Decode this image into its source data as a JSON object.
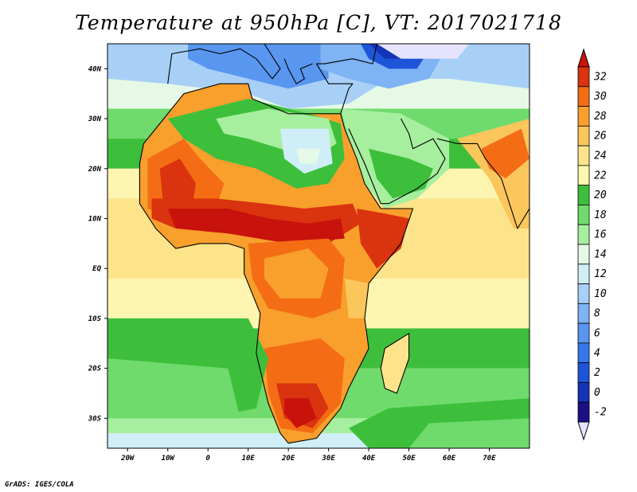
{
  "title": "Temperature at 950hPa [C], VT: 2017021718",
  "credit": "GrADS: IGES/COLA",
  "map": {
    "lon_range": [
      -25,
      80
    ],
    "lat_range": [
      -36,
      45
    ],
    "x_ticks": [
      {
        "lon": -20,
        "label": "20W"
      },
      {
        "lon": -10,
        "label": "10W"
      },
      {
        "lon": 0,
        "label": "0"
      },
      {
        "lon": 10,
        "label": "10E"
      },
      {
        "lon": 20,
        "label": "20E"
      },
      {
        "lon": 30,
        "label": "30E"
      },
      {
        "lon": 40,
        "label": "40E"
      },
      {
        "lon": 50,
        "label": "50E"
      },
      {
        "lon": 60,
        "label": "60E"
      },
      {
        "lon": 70,
        "label": "70E"
      }
    ],
    "y_ticks": [
      {
        "lat": 40,
        "label": "40N"
      },
      {
        "lat": 30,
        "label": "30N"
      },
      {
        "lat": 20,
        "label": "20N"
      },
      {
        "lat": 10,
        "label": "10N"
      },
      {
        "lat": 0,
        "label": "EQ"
      },
      {
        "lat": -10,
        "label": "10S"
      },
      {
        "lat": -20,
        "label": "20S"
      },
      {
        "lat": -30,
        "label": "30S"
      }
    ]
  },
  "colorbar": {
    "levels": [
      -2,
      0,
      2,
      4,
      6,
      8,
      10,
      12,
      14,
      16,
      18,
      20,
      22,
      24,
      26,
      28,
      30,
      32
    ],
    "colors": [
      "#1a0f84",
      "#1533b5",
      "#1e55d8",
      "#3778e8",
      "#5896f0",
      "#7eb3f4",
      "#a8d0f7",
      "#cfeef7",
      "#e6f9e6",
      "#a6ef9f",
      "#6fdb6c",
      "#3ebf3c",
      "#fdf5b0",
      "#fde48a",
      "#fbc65c",
      "#f89f2c",
      "#f46d14",
      "#d9330f",
      "#c8120c"
    ],
    "under_color": "#e6e3ff",
    "over_color": "#c8120c"
  }
}
